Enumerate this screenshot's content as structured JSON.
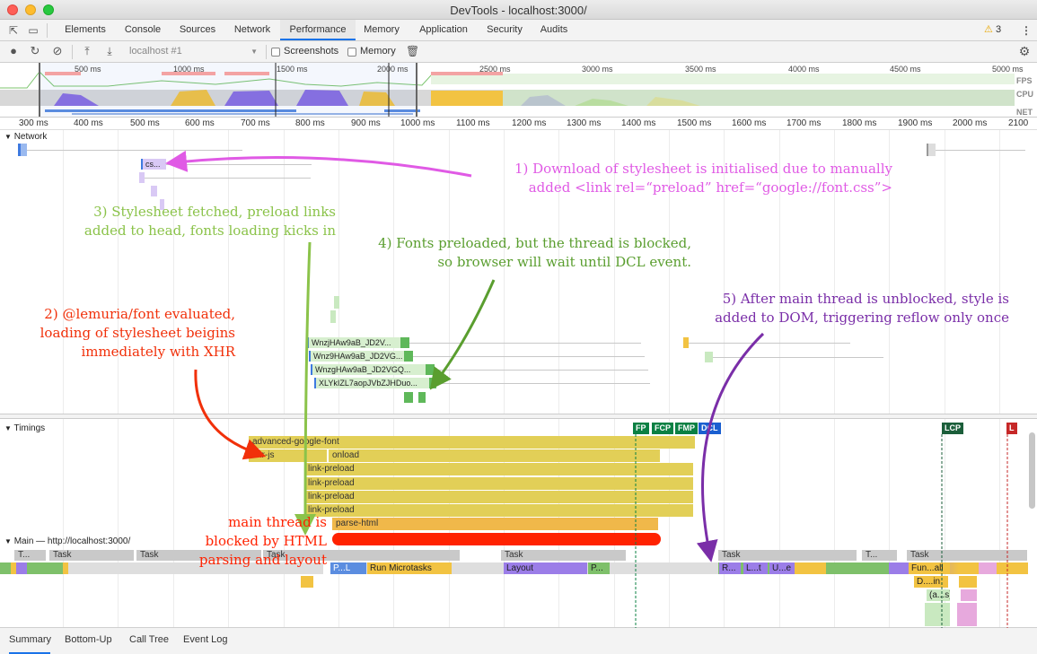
{
  "window": {
    "title": "DevTools - localhost:3000/"
  },
  "tabs": [
    {
      "label": "Elements"
    },
    {
      "label": "Console"
    },
    {
      "label": "Sources"
    },
    {
      "label": "Network"
    },
    {
      "label": "Performance",
      "active": true
    },
    {
      "label": "Memory"
    },
    {
      "label": "Application"
    },
    {
      "label": "Security"
    },
    {
      "label": "Audits"
    }
  ],
  "warnings": {
    "count": "3",
    "icon": "warning-icon"
  },
  "toolbar": {
    "profile_select": "localhost #1",
    "screenshots_label": "Screenshots",
    "memory_label": "Memory"
  },
  "overview": {
    "ticks": [
      "500 ms",
      "1000 ms",
      "1500 ms",
      "2000 ms",
      "2500 ms",
      "3000 ms",
      "3500 ms",
      "4000 ms",
      "4500 ms",
      "5000 ms"
    ],
    "fps_label": "FPS",
    "cpu_label": "CPU",
    "net_label": "NET"
  },
  "ruler": {
    "ticks": [
      "300 ms",
      "400 ms",
      "500 ms",
      "600 ms",
      "700 ms",
      "800 ms",
      "900 ms",
      "1000 ms",
      "1100 ms",
      "1200 ms",
      "1300 ms",
      "1400 ms",
      "1500 ms",
      "1600 ms",
      "1700 ms",
      "1800 ms",
      "1900 ms",
      "2000 ms",
      "2100"
    ]
  },
  "network": {
    "label": "Network",
    "requests": [
      "cs...",
      "WnzjHAw9aB_JD2V...",
      "Wnz9HAw9aB_JD2VG...",
      "WnzgHAw9aB_JD2VGQ...",
      "XLYkIZL7aopJVbZJHDuo..."
    ]
  },
  "timings": {
    "label": "Timings",
    "bars": [
      "advanced-google-font",
      "xhr-js",
      "onload",
      "link-preload",
      "link-preload",
      "link-preload",
      "link-preload",
      "parse-html"
    ],
    "markers": [
      "FP",
      "FCP",
      "FMP",
      "DCL",
      "LCP",
      "L"
    ]
  },
  "main": {
    "label": "Main — http://localhost:3000/",
    "tasks": [
      "T...",
      "Task",
      "Task",
      "Task",
      "Task",
      "Task",
      "T...",
      "Task"
    ],
    "events": [
      "P...L",
      "Run Microtasks",
      "Layout",
      "P...",
      "R...",
      "L...t",
      "U...e",
      "Fun...all",
      "D....in",
      "(a...s)"
    ]
  },
  "bottom_tabs": [
    {
      "label": "Summary",
      "active": true
    },
    {
      "label": "Bottom-Up"
    },
    {
      "label": "Call Tree"
    },
    {
      "label": "Event Log"
    }
  ],
  "annotations": {
    "note1": [
      "1) Download of stylesheet is initialised due to manually",
      "added <link rel=“preload” href=“google://font.css”>"
    ],
    "note2": [
      "2) @lemuria/font evaluated,",
      "loading of stylesheet beigins",
      "immediately with XHR"
    ],
    "note3": [
      "3) Stylesheet fetched, preload  links",
      "added to head, fonts loading kicks in"
    ],
    "note4": [
      "4) Fonts preloaded, but the thread is blocked,",
      "so browser will wait until DCL event."
    ],
    "note5": [
      "5) After main thread is unblocked, style is",
      "added to DOM, triggering reflow only once"
    ],
    "note6": [
      "main thread is",
      "blocked by HTML",
      "parsing and layout"
    ]
  },
  "colors": {
    "accent": "#1a73e8",
    "timing": "#e2cf57",
    "note1": "#e05ae5",
    "note2": "#f1300a",
    "note3": "#8bc34a",
    "note4": "#5a9e2f",
    "note5": "#7a2ea8",
    "red_bar": "#ff2200"
  }
}
